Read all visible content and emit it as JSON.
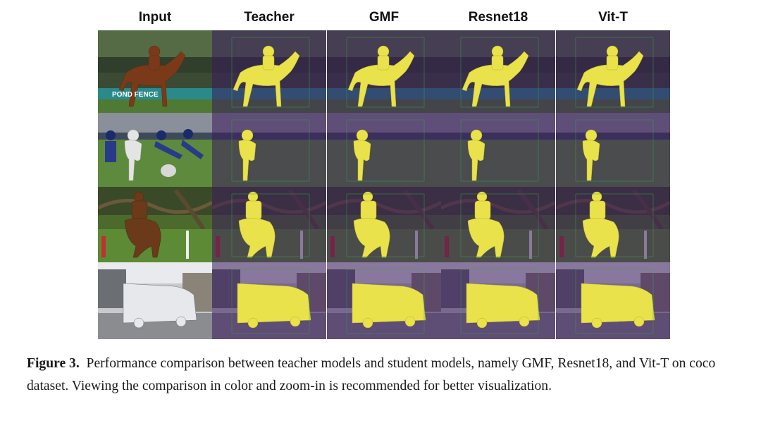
{
  "columns": [
    "Input",
    "Teacher",
    "GMF",
    "Resnet18",
    "Vit-T"
  ],
  "rows": [
    {
      "scene": "horse-jump",
      "sign_text": "POND FENCE"
    },
    {
      "scene": "football"
    },
    {
      "scene": "horse-cross"
    },
    {
      "scene": "bus"
    }
  ],
  "caption": {
    "label": "Figure 3.",
    "text": "Performance comparison between teacher models and student models, namely GMF, Resnet18, and Vit-T on coco dataset. Viewing the comparison in color and zoom-in is recommended for better visualization."
  },
  "colors": {
    "mask": "#e9e24a",
    "overlay": "#3b1a5c"
  }
}
